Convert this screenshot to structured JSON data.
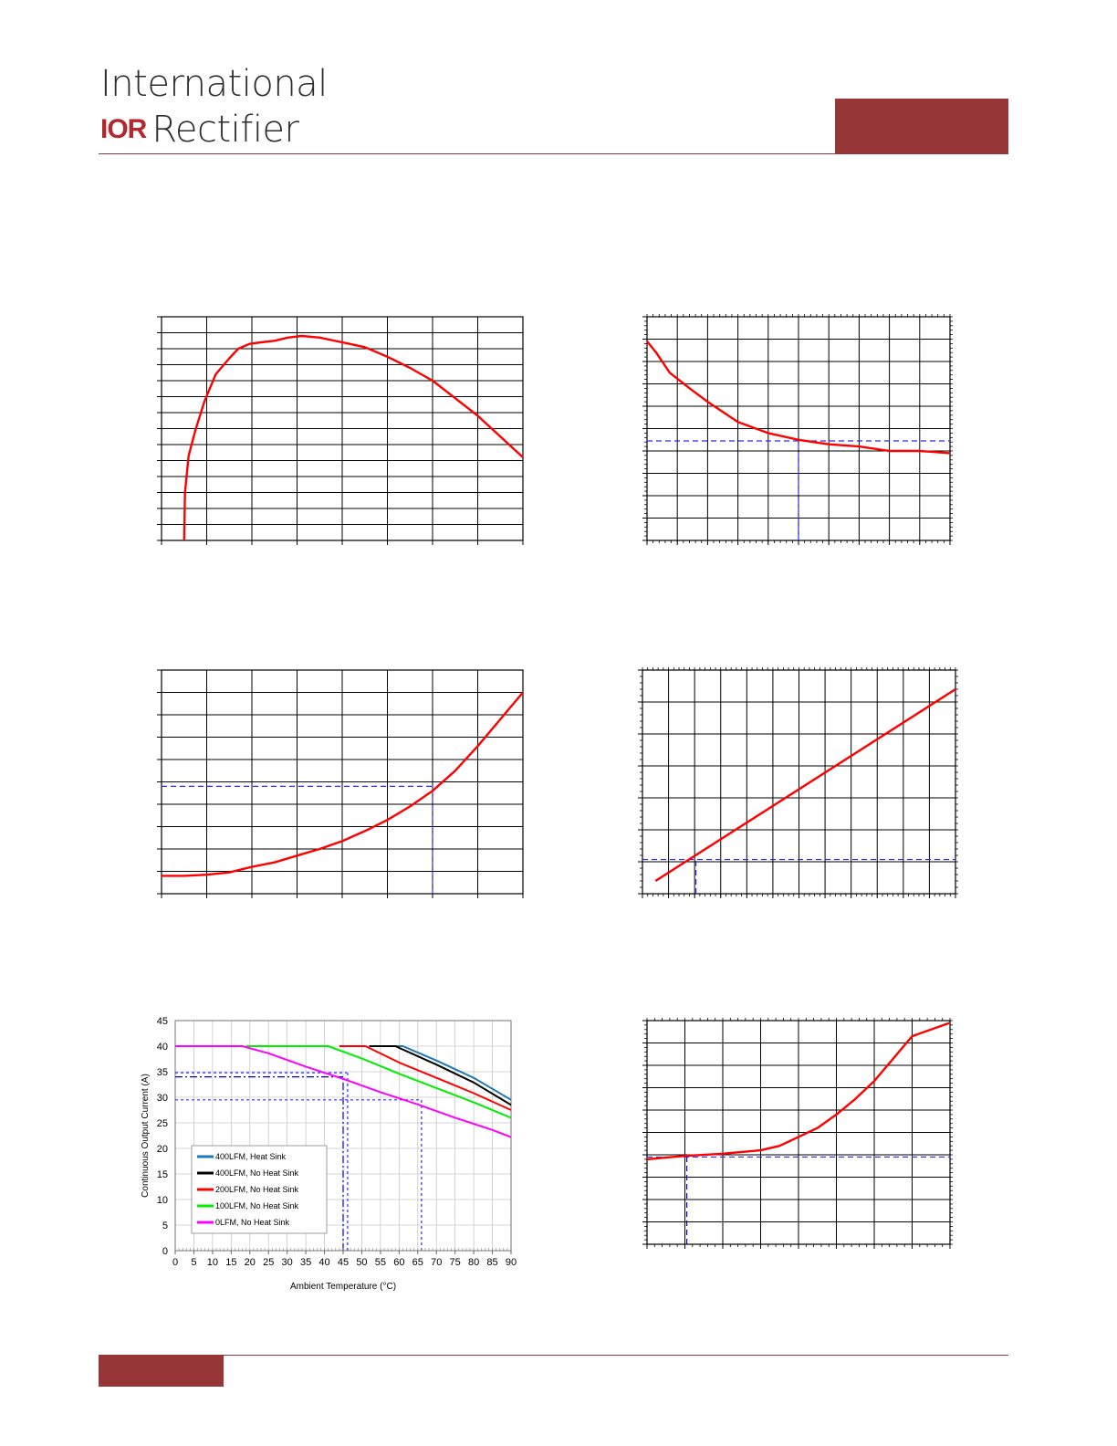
{
  "brand": {
    "line1": "International",
    "mark": "IOR",
    "line2": "Rectifier",
    "color": "#963636"
  },
  "chart_data": [
    {
      "id": "c1",
      "type": "line",
      "grid": true,
      "xlim": [
        0,
        8
      ],
      "ylim": [
        0,
        14
      ],
      "x_major": 8,
      "y_major": 14,
      "x_minor": 0,
      "y_minor": 0,
      "series": [
        {
          "color": "#ff0000",
          "points": [
            [
              0.5,
              0
            ],
            [
              0.52,
              3
            ],
            [
              0.6,
              5.3
            ],
            [
              0.75,
              6.9
            ],
            [
              0.95,
              8.7
            ],
            [
              1.2,
              10.4
            ],
            [
              1.5,
              11.4
            ],
            [
              1.7,
              12.0
            ],
            [
              1.95,
              12.3
            ],
            [
              2.2,
              12.4
            ],
            [
              2.5,
              12.5
            ],
            [
              2.8,
              12.7
            ],
            [
              3.1,
              12.8
            ],
            [
              3.5,
              12.7
            ],
            [
              4,
              12.4
            ],
            [
              4.5,
              12.1
            ],
            [
              5,
              11.5
            ],
            [
              5.5,
              10.8
            ],
            [
              6,
              10.0
            ],
            [
              6.5,
              8.9
            ],
            [
              7,
              7.8
            ],
            [
              7.5,
              6.5
            ],
            [
              8,
              5.2
            ]
          ]
        }
      ],
      "guides": []
    },
    {
      "id": "c2",
      "type": "line",
      "grid": true,
      "xlim": [
        0,
        10
      ],
      "ylim": [
        0,
        10
      ],
      "x_major": 10,
      "y_major": 10,
      "x_minor": 50,
      "y_minor": 50,
      "series": [
        {
          "color": "#ff0000",
          "points": [
            [
              0,
              8.9
            ],
            [
              0.3,
              8.4
            ],
            [
              0.75,
              7.5
            ],
            [
              1.5,
              6.7
            ],
            [
              2,
              6.2
            ],
            [
              3,
              5.3
            ],
            [
              4,
              4.8
            ],
            [
              5,
              4.5
            ],
            [
              6,
              4.3
            ],
            [
              7,
              4.2
            ],
            [
              8,
              4.0
            ],
            [
              9,
              4.0
            ],
            [
              10,
              3.9
            ]
          ]
        }
      ],
      "guides": [
        {
          "axis": "h",
          "value": 4.45,
          "from": 0,
          "to": 10,
          "color": "#2b2bff",
          "dash": "6 4"
        },
        {
          "axis": "v",
          "value": 5,
          "from": 0,
          "to": 4.45,
          "color": "#2b2bff",
          "dash": "6 4"
        }
      ]
    },
    {
      "id": "c3",
      "type": "line",
      "grid": true,
      "xlim": [
        0,
        8
      ],
      "ylim": [
        0,
        10
      ],
      "x_major": 8,
      "y_major": 10,
      "x_minor": 0,
      "y_minor": 0,
      "series": [
        {
          "color": "#ff0000",
          "points": [
            [
              0,
              0.8
            ],
            [
              0.5,
              0.8
            ],
            [
              1,
              0.85
            ],
            [
              1.5,
              0.95
            ],
            [
              2,
              1.2
            ],
            [
              2.5,
              1.4
            ],
            [
              3,
              1.7
            ],
            [
              3.5,
              2.0
            ],
            [
              4,
              2.35
            ],
            [
              4.5,
              2.8
            ],
            [
              5,
              3.3
            ],
            [
              5.5,
              3.9
            ],
            [
              6,
              4.6
            ],
            [
              6.5,
              5.5
            ],
            [
              7,
              6.6
            ],
            [
              7.5,
              7.8
            ],
            [
              8,
              9.0
            ]
          ]
        }
      ],
      "guides": [
        {
          "axis": "h",
          "value": 4.8,
          "from": 0,
          "to": 6,
          "color": "#2b2bff",
          "dash": "6 4"
        },
        {
          "axis": "v",
          "value": 6,
          "from": 0,
          "to": 4.8,
          "color": "#2b2bff",
          "dash": "6 4"
        }
      ]
    },
    {
      "id": "c4",
      "type": "line",
      "grid": true,
      "xlim": [
        0,
        12
      ],
      "ylim": [
        0,
        7
      ],
      "x_major": 12,
      "y_major": 7,
      "x_minor": 60,
      "y_minor": 35,
      "series": [
        {
          "color": "#ff0000",
          "points": [
            [
              0.5,
              0.4
            ],
            [
              12,
              6.4
            ]
          ]
        }
      ],
      "guides": [
        {
          "axis": "h",
          "value": 1.07,
          "from": 0,
          "to": 12,
          "color": "#2b2bff",
          "dash": "6 4"
        },
        {
          "axis": "v",
          "value": 2.05,
          "from": 0,
          "to": 1.07,
          "color": "#2b2bff",
          "dash": "6 4"
        }
      ]
    },
    {
      "id": "c5",
      "type": "line",
      "grid": true,
      "xlim": [
        0,
        90
      ],
      "ylim": [
        0,
        45
      ],
      "x_ticks": [
        0,
        5,
        10,
        15,
        20,
        25,
        30,
        35,
        40,
        45,
        50,
        55,
        60,
        65,
        70,
        75,
        80,
        85,
        90
      ],
      "y_ticks": [
        0,
        5,
        10,
        15,
        20,
        25,
        30,
        35,
        40,
        45
      ],
      "xlabel": "Ambient Temperature (°C)",
      "ylabel": "Continuous Output Current (A)",
      "legend_position": "bottom-left",
      "series": [
        {
          "name": "400LFM, Heat Sink",
          "color": "#1f77b4",
          "points": [
            [
              52,
              40
            ],
            [
              61,
              40
            ],
            [
              70,
              37.2
            ],
            [
              80,
              33.8
            ],
            [
              90,
              29.5
            ]
          ]
        },
        {
          "name": "400LFM, No Heat Sink",
          "color": "#000000",
          "points": [
            [
              52,
              40
            ],
            [
              59,
              40
            ],
            [
              70,
              36.4
            ],
            [
              80,
              32.9
            ],
            [
              90,
              28.5
            ]
          ]
        },
        {
          "name": "200LFM, No Heat Sink",
          "color": "#ff0000",
          "points": [
            [
              44,
              40
            ],
            [
              51,
              40
            ],
            [
              60,
              36.8
            ],
            [
              70,
              33.8
            ],
            [
              80,
              30.8
            ],
            [
              90,
              27.5
            ]
          ]
        },
        {
          "name": "100LFM, No Heat Sink",
          "color": "#00ee00",
          "points": [
            [
              19,
              40
            ],
            [
              41,
              40
            ],
            [
              50,
              37.6
            ],
            [
              60,
              34.6
            ],
            [
              70,
              31.8
            ],
            [
              80,
              29
            ],
            [
              90,
              26
            ]
          ]
        },
        {
          "name": "0LFM, No Heat Sink",
          "color": "#ff00ff",
          "points": [
            [
              0,
              40
            ],
            [
              18,
              40
            ],
            [
              25,
              38.6
            ],
            [
              35,
              36
            ],
            [
              45,
              33.6
            ],
            [
              55,
              31
            ],
            [
              65,
              28.6
            ],
            [
              75,
              26
            ],
            [
              85,
              23.6
            ],
            [
              90,
              22.2
            ]
          ]
        }
      ],
      "guides": [
        {
          "axis": "h",
          "value": 34,
          "from": 0,
          "to": 45,
          "color": "#0000cc",
          "dash": "8 3 2 3"
        },
        {
          "axis": "v",
          "value": 45,
          "from": 0,
          "to": 34,
          "color": "#0000cc",
          "dash": "8 3 2 3"
        },
        {
          "axis": "h",
          "value": 34.8,
          "from": 0,
          "to": 46,
          "color": "#2b2bff",
          "dash": "3 3"
        },
        {
          "axis": "v",
          "value": 46.2,
          "from": 0,
          "to": 34.8,
          "color": "#2b2bff",
          "dash": "3 3"
        },
        {
          "axis": "h",
          "value": 29.5,
          "from": 0,
          "to": 66,
          "color": "#2b2bff",
          "dash": "3 3"
        },
        {
          "axis": "v",
          "value": 66,
          "from": 0,
          "to": 29.5,
          "color": "#2b2bff",
          "dash": "3 3"
        }
      ]
    },
    {
      "id": "c6",
      "type": "line",
      "grid": true,
      "xlim": [
        0,
        8
      ],
      "ylim": [
        0,
        10
      ],
      "x_major": 8,
      "y_major": 10,
      "x_minor": 40,
      "y_minor": 50,
      "series": [
        {
          "color": "#ff0000",
          "points": [
            [
              0,
              3.8
            ],
            [
              1,
              3.95
            ],
            [
              2,
              4.05
            ],
            [
              3,
              4.2
            ],
            [
              3.5,
              4.4
            ],
            [
              4,
              4.8
            ],
            [
              4.5,
              5.2
            ],
            [
              5,
              5.8
            ],
            [
              5.5,
              6.5
            ],
            [
              6,
              7.3
            ],
            [
              6.5,
              8.3
            ],
            [
              7,
              9.3
            ],
            [
              8,
              9.9
            ]
          ]
        }
      ],
      "guides": [
        {
          "axis": "h",
          "value": 3.9,
          "from": 0,
          "to": 8,
          "color": "#2b2bff",
          "dash": "6 4"
        },
        {
          "axis": "v",
          "value": 1.05,
          "from": 0,
          "to": 3.9,
          "color": "#0000cc",
          "dash": "6 4"
        }
      ]
    }
  ]
}
